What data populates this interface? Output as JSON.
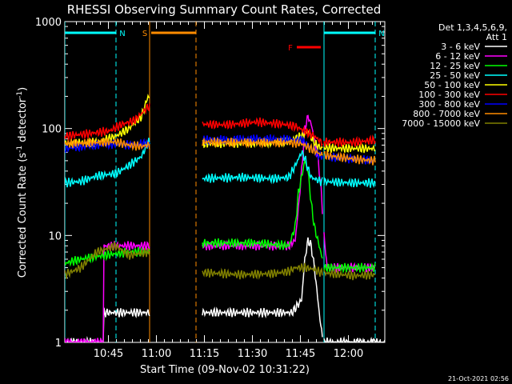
{
  "chart_data": {
    "type": "line",
    "title": "RHESSI Observing Summary Count Rates, Corrected",
    "xlabel": "Start Time (09-Nov-02 10:31:22)",
    "ylabel_main": "Corrected Count Rate (s",
    "ylabel_sup1": "-1",
    "ylabel_mid": " detector",
    "ylabel_sup2": "-1",
    "ylabel_end": ")",
    "footer": "21-Oct-2021 02:56",
    "x_start": "10:31:22",
    "xlim_minutes": [
      0,
      100
    ],
    "ylim": [
      1,
      1000
    ],
    "y_scale": "log",
    "x_ticks": [
      {
        "label": "10:45",
        "min": 13.63
      },
      {
        "label": "11:00",
        "min": 28.63
      },
      {
        "label": "11:15",
        "min": 43.63
      },
      {
        "label": "11:30",
        "min": 58.63
      },
      {
        "label": "11:45",
        "min": 73.63
      },
      {
        "label": "12:00",
        "min": 88.63
      }
    ],
    "y_ticks": [
      {
        "label": "1",
        "val": 1
      },
      {
        "label": "10",
        "val": 10
      },
      {
        "label": "100",
        "val": 100
      },
      {
        "label": "1000",
        "val": 1000
      }
    ],
    "legend_header": [
      "Det 1,3,4,5,6,9,",
      "Att 1"
    ],
    "legend_position": "right",
    "gaps_minutes": [
      [
        26.5,
        43.0
      ],
      [
        80.5,
        81.0
      ]
    ],
    "markers": [
      {
        "label": "N",
        "color": "#00ffff",
        "from": 0,
        "to": 16
      },
      {
        "label": "N",
        "color": "#00ffff",
        "from": 81,
        "to": 97
      },
      {
        "label": "S",
        "color": "#ff8c00",
        "from": 27,
        "to": 41
      },
      {
        "label": "F",
        "color": "#ff0000",
        "from": 72.5,
        "to": 80
      }
    ],
    "vlines": [
      {
        "x": 0,
        "color": "#00ffff",
        "dash": false
      },
      {
        "x": 16,
        "color": "#00ffff",
        "dash": true
      },
      {
        "x": 81,
        "color": "#00ffff",
        "dash": false
      },
      {
        "x": 97,
        "color": "#00ffff",
        "dash": true
      },
      {
        "x": 26.5,
        "color": "#ff8c00",
        "dash": false
      },
      {
        "x": 41,
        "color": "#ff8c00",
        "dash": true
      }
    ],
    "series": [
      {
        "name": "3 - 6 keV",
        "color": "#ffffff",
        "points": [
          [
            0,
            1
          ],
          [
            12,
            1
          ],
          [
            12,
            1.9
          ],
          [
            26,
            1.9
          ],
          [
            43,
            1.9
          ],
          [
            71,
            1.9
          ],
          [
            74,
            2.5
          ],
          [
            75,
            6
          ],
          [
            76,
            9
          ],
          [
            77,
            8
          ],
          [
            78,
            5
          ],
          [
            80,
            1.4
          ],
          [
            81,
            1
          ],
          [
            100,
            1
          ]
        ]
      },
      {
        "name": "6 - 12 keV",
        "color": "#ff00ff",
        "points": [
          [
            0,
            1
          ],
          [
            12,
            1
          ],
          [
            12,
            8
          ],
          [
            20,
            8
          ],
          [
            26,
            8
          ],
          [
            43,
            8
          ],
          [
            70,
            8
          ],
          [
            72,
            9
          ],
          [
            73,
            18
          ],
          [
            74,
            40
          ],
          [
            75,
            100
          ],
          [
            76,
            130
          ],
          [
            77,
            110
          ],
          [
            78,
            80
          ],
          [
            79,
            55
          ],
          [
            80,
            30
          ],
          [
            81,
            10
          ],
          [
            82,
            5
          ],
          [
            86,
            5
          ],
          [
            97,
            5
          ]
        ]
      },
      {
        "name": "12 - 25 keV",
        "color": "#00ff00",
        "points": [
          [
            0,
            5.5
          ],
          [
            5,
            6
          ],
          [
            12,
            6.5
          ],
          [
            20,
            7
          ],
          [
            26,
            7
          ],
          [
            43,
            8.5
          ],
          [
            60,
            8.5
          ],
          [
            70,
            8
          ],
          [
            72,
            12
          ],
          [
            73,
            25
          ],
          [
            75,
            50
          ],
          [
            76,
            40
          ],
          [
            77,
            20
          ],
          [
            78,
            12
          ],
          [
            80,
            7
          ],
          [
            81,
            5
          ],
          [
            88,
            5
          ],
          [
            97,
            5
          ]
        ]
      },
      {
        "name": "25 - 50 keV",
        "color": "#00ffff",
        "points": [
          [
            0,
            31
          ],
          [
            5,
            32
          ],
          [
            10,
            36
          ],
          [
            16,
            38
          ],
          [
            20,
            45
          ],
          [
            24,
            55
          ],
          [
            26,
            75
          ],
          [
            43,
            34
          ],
          [
            55,
            35
          ],
          [
            65,
            34
          ],
          [
            70,
            35
          ],
          [
            72,
            45
          ],
          [
            74,
            60
          ],
          [
            75,
            53
          ],
          [
            76,
            42
          ],
          [
            77,
            35
          ],
          [
            80,
            32
          ],
          [
            90,
            31
          ],
          [
            97,
            31
          ]
        ]
      },
      {
        "name": "50 - 100 keV",
        "color": "#ffff00",
        "points": [
          [
            0,
            72
          ],
          [
            10,
            74
          ],
          [
            16,
            85
          ],
          [
            20,
            100
          ],
          [
            24,
            130
          ],
          [
            26,
            200
          ],
          [
            43,
            72
          ],
          [
            55,
            73
          ],
          [
            65,
            74
          ],
          [
            70,
            76
          ],
          [
            74,
            85
          ],
          [
            76,
            95
          ],
          [
            78,
            72
          ],
          [
            80,
            66
          ],
          [
            90,
            65
          ],
          [
            97,
            65
          ]
        ]
      },
      {
        "name": "100 - 300 keV",
        "color": "#ff0000",
        "points": [
          [
            0,
            85
          ],
          [
            8,
            90
          ],
          [
            14,
            95
          ],
          [
            18,
            110
          ],
          [
            22,
            120
          ],
          [
            26,
            160
          ],
          [
            43,
            110
          ],
          [
            50,
            108
          ],
          [
            60,
            115
          ],
          [
            68,
            110
          ],
          [
            72,
            105
          ],
          [
            75,
            95
          ],
          [
            78,
            85
          ],
          [
            80,
            75
          ],
          [
            90,
            74
          ],
          [
            97,
            78
          ]
        ]
      },
      {
        "name": "300 - 800 keV",
        "color": "#0000ff",
        "points": [
          [
            0,
            65
          ],
          [
            10,
            70
          ],
          [
            16,
            72
          ],
          [
            20,
            70
          ],
          [
            24,
            72
          ],
          [
            26,
            72
          ],
          [
            43,
            78
          ],
          [
            60,
            80
          ],
          [
            70,
            79
          ],
          [
            74,
            78
          ],
          [
            78,
            62
          ],
          [
            80,
            55
          ],
          [
            90,
            52
          ],
          [
            97,
            50
          ]
        ]
      },
      {
        "name": "800 - 7000 keV",
        "color": "#ff8c00",
        "points": [
          [
            0,
            72
          ],
          [
            10,
            74
          ],
          [
            16,
            75
          ],
          [
            20,
            70
          ],
          [
            24,
            68
          ],
          [
            26,
            70
          ],
          [
            43,
            75
          ],
          [
            60,
            74
          ],
          [
            70,
            74
          ],
          [
            74,
            72
          ],
          [
            78,
            62
          ],
          [
            80,
            57
          ],
          [
            90,
            52
          ],
          [
            97,
            50
          ]
        ]
      },
      {
        "name": "7000 - 15000 keV",
        "color": "#808000",
        "points": [
          [
            0,
            4.3
          ],
          [
            5,
            5
          ],
          [
            10,
            7
          ],
          [
            16,
            8
          ],
          [
            20,
            6.5
          ],
          [
            26,
            7
          ],
          [
            43,
            4.5
          ],
          [
            55,
            4.3
          ],
          [
            65,
            4.4
          ],
          [
            70,
            4.6
          ],
          [
            72,
            5
          ],
          [
            75,
            5
          ],
          [
            78,
            4.8
          ],
          [
            80,
            4.5
          ],
          [
            90,
            4.2
          ],
          [
            97,
            4.3
          ]
        ]
      }
    ]
  }
}
